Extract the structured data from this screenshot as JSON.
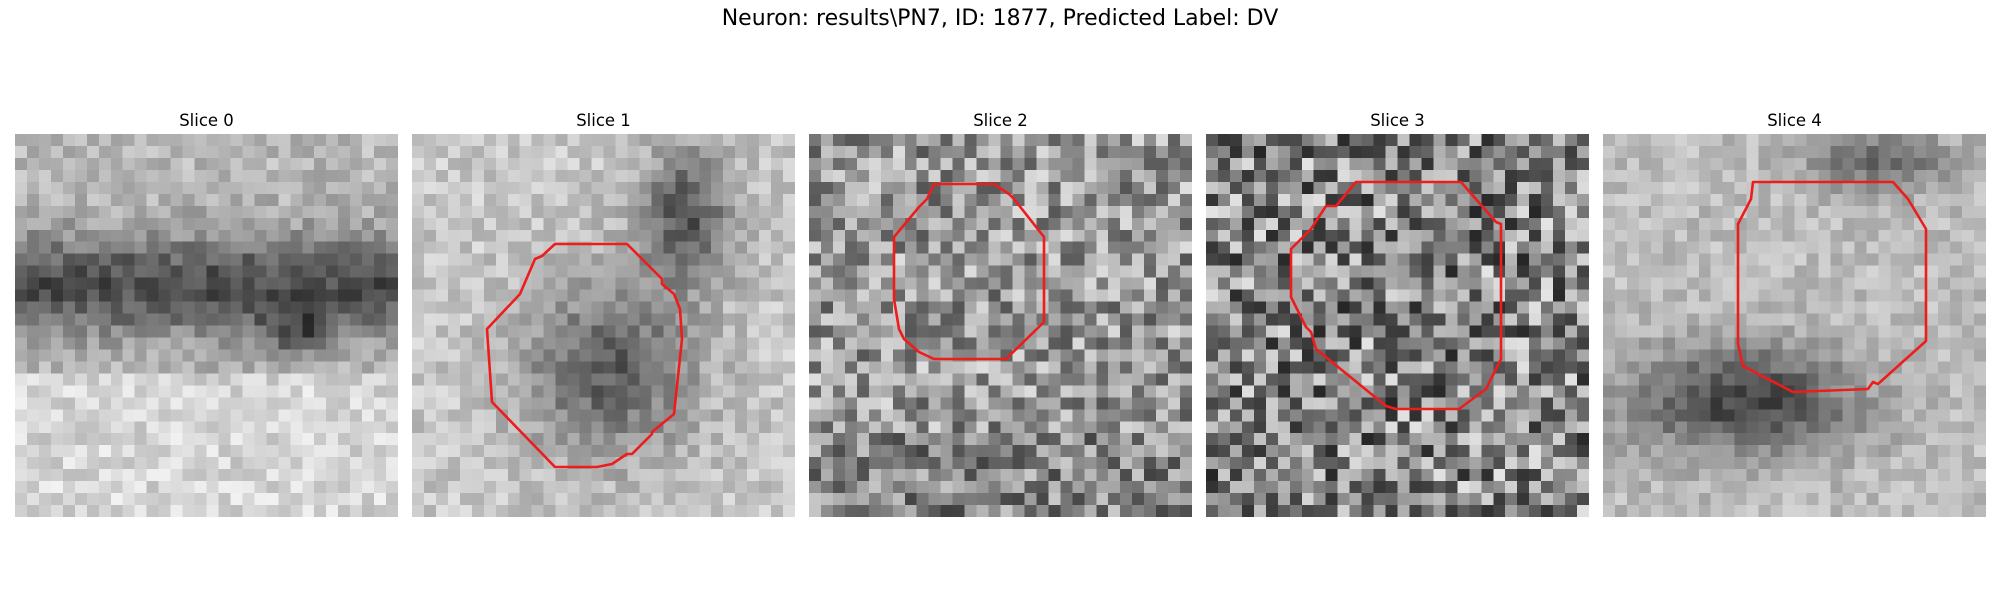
{
  "figure": {
    "title": "Neuron: results\\PN7, ID: 1877, Predicted Label: DV"
  },
  "panels": [
    {
      "title": "Slice 0",
      "has_outline": false,
      "seed": 11,
      "blob": "band"
    },
    {
      "title": "Slice 1",
      "has_outline": true,
      "seed": 23,
      "blob": "dark-disc"
    },
    {
      "title": "Slice 2",
      "has_outline": true,
      "seed": 37,
      "blob": "noise"
    },
    {
      "title": "Slice 3",
      "has_outline": true,
      "seed": 53,
      "blob": "noise-dark"
    },
    {
      "title": "Slice 4",
      "has_outline": true,
      "seed": 71,
      "blob": "dark-lower"
    }
  ],
  "colors": {
    "outline": "#ee1c1c",
    "background": "#ffffff"
  }
}
